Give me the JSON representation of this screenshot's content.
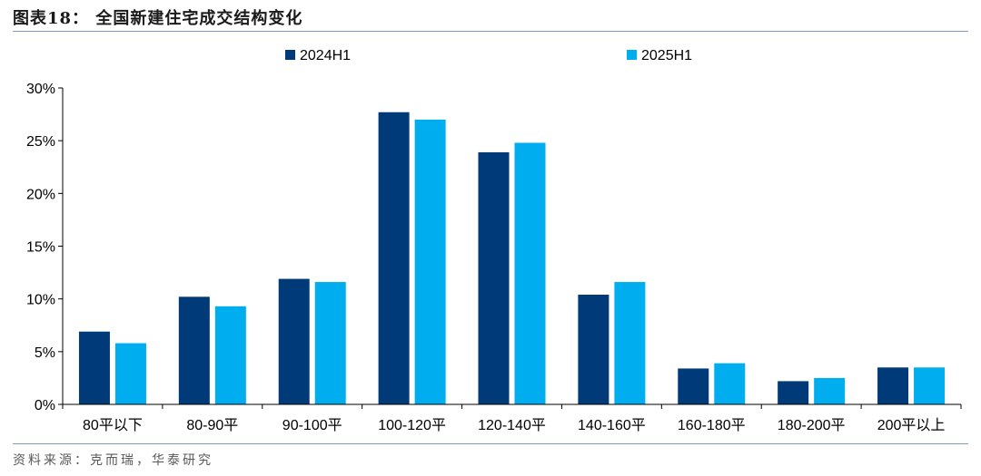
{
  "header": {
    "title": "图表18：  全国新建住宅成交结构变化"
  },
  "footer": {
    "source": "资料来源：克而瑞，华泰研究"
  },
  "colors": {
    "series_2024": "#003a78",
    "series_2025": "#00adee",
    "axis": "#000000",
    "rule": "#7f9cbf"
  },
  "chart_data": {
    "type": "bar",
    "title": "",
    "xlabel": "",
    "ylabel": "",
    "categories": [
      "80平以下",
      "80-90平",
      "90-100平",
      "100-120平",
      "120-140平",
      "140-160平",
      "160-180平",
      "180-200平",
      "200平以上"
    ],
    "series": [
      {
        "name": "2024H1",
        "values": [
          6.9,
          10.2,
          11.9,
          27.7,
          23.9,
          10.4,
          3.4,
          2.2,
          3.5
        ]
      },
      {
        "name": "2025H1",
        "values": [
          5.8,
          9.3,
          11.6,
          27.0,
          24.8,
          11.6,
          3.9,
          2.5,
          3.5
        ]
      }
    ],
    "ylim": [
      0,
      30
    ],
    "yticks": [
      "0%",
      "5%",
      "10%",
      "15%",
      "20%",
      "25%",
      "30%"
    ],
    "grid": false,
    "legend": "top"
  }
}
